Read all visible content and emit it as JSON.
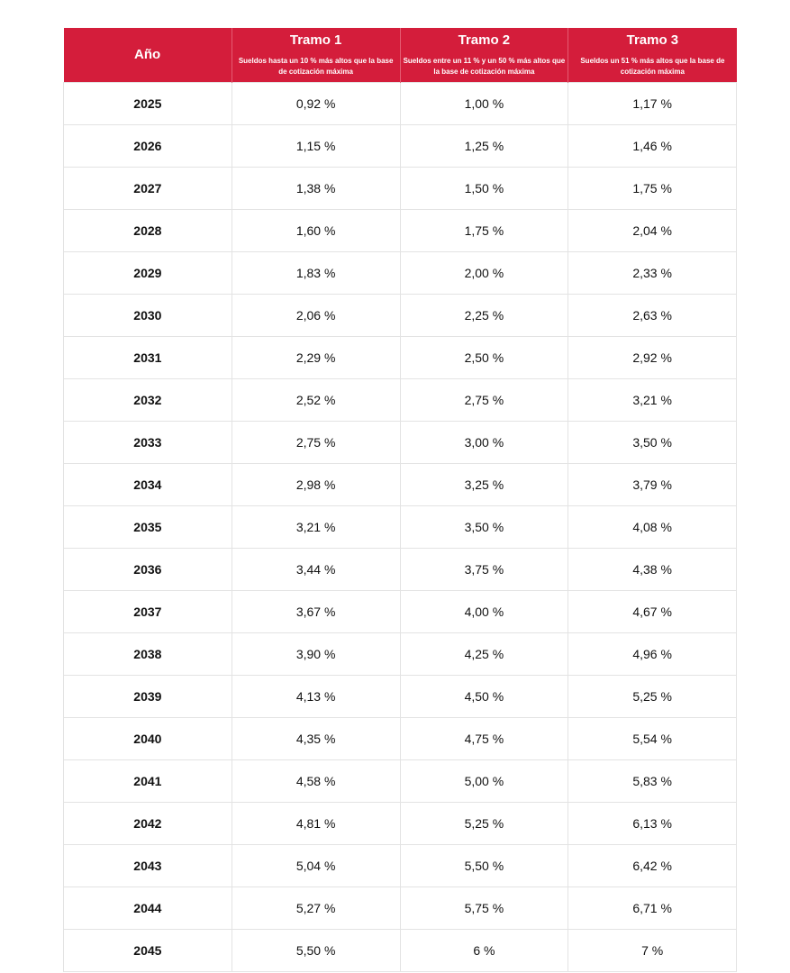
{
  "header": {
    "year_label": "Año",
    "columns": [
      {
        "title": "Tramo 1",
        "subtitle": "Sueldos hasta un 10 % más altos que la base de cotización máxima"
      },
      {
        "title": "Tramo 2",
        "subtitle": "Sueldos entre un 11 % y un 50 % más altos que la base de cotización máxima"
      },
      {
        "title": "Tramo 3",
        "subtitle": "Sueldos un 51 % más altos que la base de cotización máxima"
      }
    ]
  },
  "rows": [
    {
      "year": "2025",
      "t1": "0,92 %",
      "t2": "1,00 %",
      "t3": "1,17 %"
    },
    {
      "year": "2026",
      "t1": "1,15 %",
      "t2": "1,25 %",
      "t3": "1,46 %"
    },
    {
      "year": "2027",
      "t1": "1,38 %",
      "t2": "1,50 %",
      "t3": "1,75 %"
    },
    {
      "year": "2028",
      "t1": "1,60 %",
      "t2": "1,75 %",
      "t3": "2,04 %"
    },
    {
      "year": "2029",
      "t1": "1,83 %",
      "t2": "2,00 %",
      "t3": "2,33 %"
    },
    {
      "year": "2030",
      "t1": "2,06 %",
      "t2": "2,25 %",
      "t3": "2,63 %"
    },
    {
      "year": "2031",
      "t1": "2,29 %",
      "t2": "2,50 %",
      "t3": "2,92 %"
    },
    {
      "year": "2032",
      "t1": "2,52 %",
      "t2": "2,75 %",
      "t3": "3,21 %"
    },
    {
      "year": "2033",
      "t1": "2,75 %",
      "t2": "3,00 %",
      "t3": "3,50 %"
    },
    {
      "year": "2034",
      "t1": "2,98 %",
      "t2": "3,25 %",
      "t3": "3,79 %"
    },
    {
      "year": "2035",
      "t1": "3,21 %",
      "t2": "3,50 %",
      "t3": "4,08 %"
    },
    {
      "year": "2036",
      "t1": "3,44 %",
      "t2": "3,75 %",
      "t3": "4,38 %"
    },
    {
      "year": "2037",
      "t1": "3,67 %",
      "t2": "4,00 %",
      "t3": "4,67 %"
    },
    {
      "year": "2038",
      "t1": "3,90 %",
      "t2": "4,25 %",
      "t3": "4,96 %"
    },
    {
      "year": "2039",
      "t1": "4,13 %",
      "t2": "4,50 %",
      "t3": "5,25 %"
    },
    {
      "year": "2040",
      "t1": "4,35 %",
      "t2": "4,75 %",
      "t3": "5,54 %"
    },
    {
      "year": "2041",
      "t1": "4,58 %",
      "t2": "5,00 %",
      "t3": "5,83 %"
    },
    {
      "year": "2042",
      "t1": "4,81 %",
      "t2": "5,25 %",
      "t3": "6,13 %"
    },
    {
      "year": "2043",
      "t1": "5,04 %",
      "t2": "5,50 %",
      "t3": "6,42 %"
    },
    {
      "year": "2044",
      "t1": "5,27 %",
      "t2": "5,75 %",
      "t3": "6,71 %"
    },
    {
      "year": "2045",
      "t1": "5,50 %",
      "t2": "6 %",
      "t3": "7 %"
    }
  ],
  "colors": {
    "header_bg": "#d41d3b",
    "header_text": "#ffffff",
    "grid": "#e3e3e3"
  }
}
